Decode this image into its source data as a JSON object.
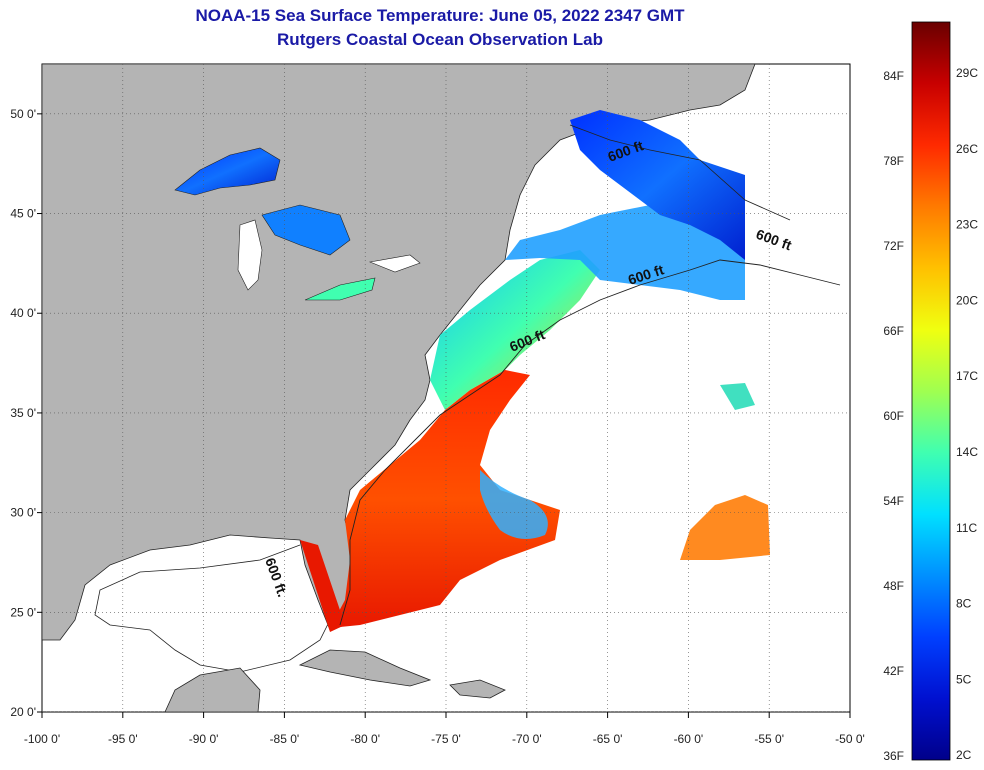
{
  "title_line1": "NOAA-15 Sea Surface Temperature:  June 05, 2022 2347 GMT",
  "title_line2": "Rutgers Coastal Ocean Observation Lab",
  "axes": {
    "x_ticks": [
      {
        "lon": -100,
        "label": "-100 0'"
      },
      {
        "lon": -95,
        "label": "-95 0'"
      },
      {
        "lon": -90,
        "label": "-90 0'"
      },
      {
        "lon": -85,
        "label": "-85 0'"
      },
      {
        "lon": -80,
        "label": "-80 0'"
      },
      {
        "lon": -75,
        "label": "-75 0'"
      },
      {
        "lon": -70,
        "label": "-70 0'"
      },
      {
        "lon": -65,
        "label": "-65 0'"
      },
      {
        "lon": -60,
        "label": "-60 0'"
      },
      {
        "lon": -55,
        "label": "-55 0'"
      },
      {
        "lon": -50,
        "label": "-50 0'"
      }
    ],
    "y_ticks": [
      {
        "lat": 50,
        "label": "50 0'"
      },
      {
        "lat": 45,
        "label": "45 0'"
      },
      {
        "lat": 40,
        "label": "40 0'"
      },
      {
        "lat": 35,
        "label": "35 0'"
      },
      {
        "lat": 30,
        "label": "30 0'"
      },
      {
        "lat": 25,
        "label": "25 0'"
      },
      {
        "lat": 20,
        "label": "20 0'"
      }
    ],
    "lon_range": [
      -100,
      -50
    ],
    "lat_range": [
      20,
      52.5
    ]
  },
  "contour_labels": [
    "600 ft",
    "600 ft",
    "600 ft",
    "600 ft",
    "600 ft."
  ],
  "colorbar": {
    "fahrenheit_labels": [
      "84F",
      "78F",
      "72F",
      "66F",
      "60F",
      "54F",
      "48F",
      "42F",
      "36F"
    ],
    "celsius_labels": [
      "29C",
      "26C",
      "23C",
      "20C",
      "17C",
      "14C",
      "11C",
      "8C",
      "5C",
      "2C"
    ],
    "colors": [
      "#6a0000",
      "#c80000",
      "#ff2a00",
      "#ff7a00",
      "#ffc000",
      "#f0ff10",
      "#a0ff50",
      "#40ffb0",
      "#00e0ff",
      "#0090ff",
      "#0040ff",
      "#0010d0",
      "#00008a"
    ]
  },
  "colors": {
    "land": "#b4b4b4",
    "ocean": "#ffffff",
    "grid": "#555555"
  }
}
